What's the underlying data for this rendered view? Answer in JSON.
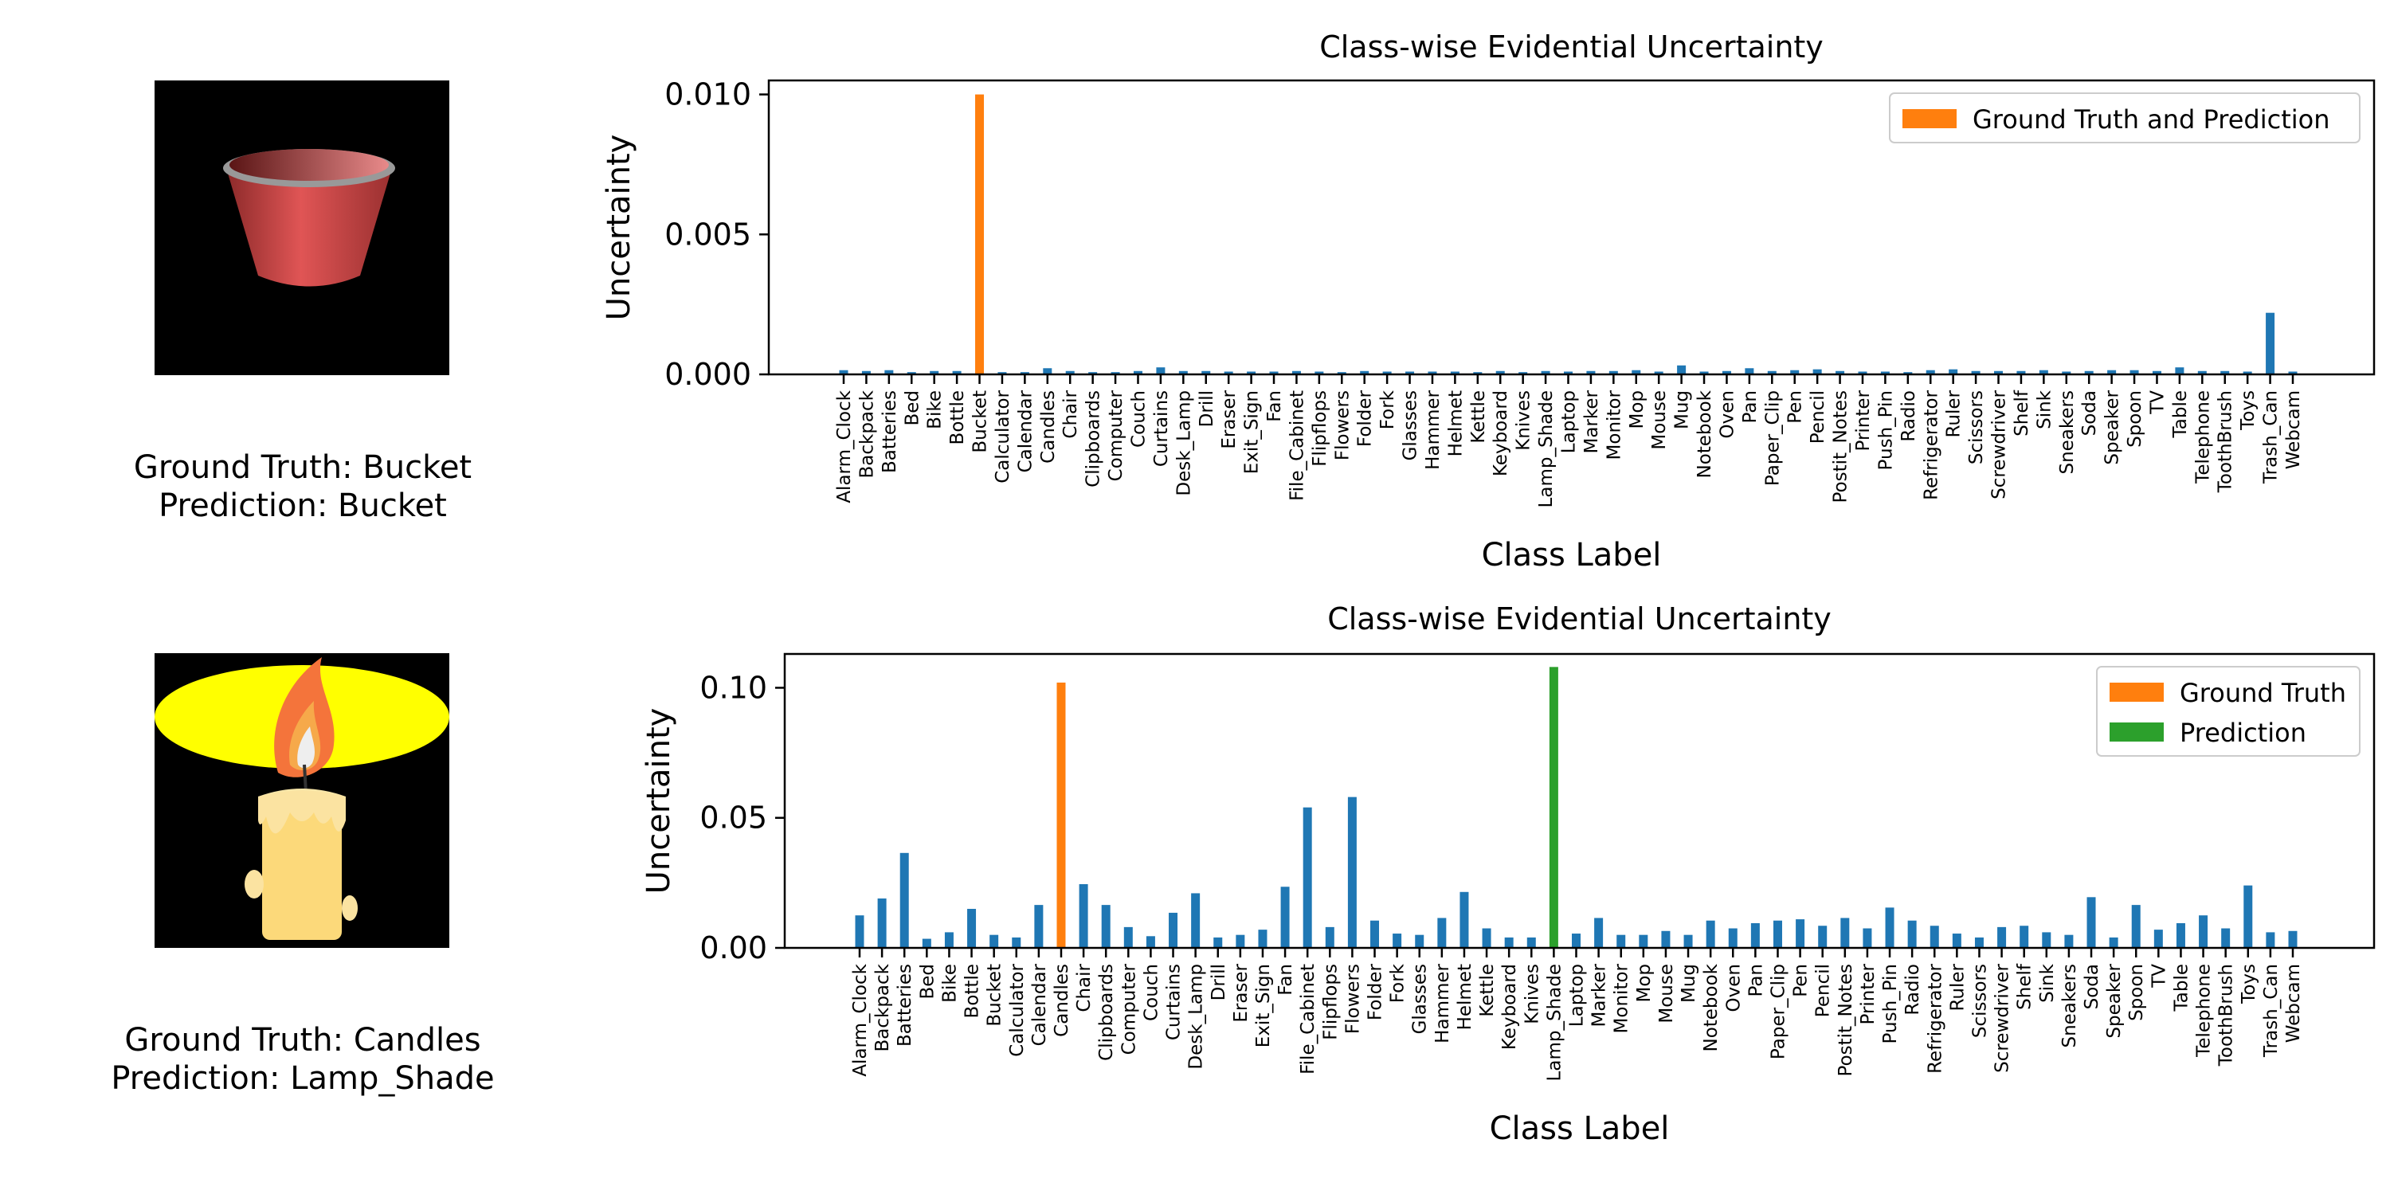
{
  "panels": [
    {
      "caption_gt": "Ground Truth: Bucket",
      "caption_pred": "Prediction: Bucket",
      "image": "bucket"
    },
    {
      "caption_gt": "Ground Truth: Candles",
      "caption_pred": "Prediction: Lamp_Shade",
      "image": "candle"
    }
  ],
  "colors": {
    "default": "#1f77b4",
    "ground_truth": "#ff7f0e",
    "prediction": "#2ca02c"
  },
  "chart_data": [
    {
      "type": "bar",
      "title": "Class-wise Evidential Uncertainty",
      "xlabel": "Class Label",
      "ylabel": "Uncertainty",
      "ylim": [
        0,
        0.0105
      ],
      "yticks": [
        "0.000",
        "0.005",
        "0.010"
      ],
      "ytick_values": [
        0,
        0.005,
        0.01
      ],
      "legend": [
        {
          "name": "Ground Truth and Prediction",
          "color": "#ff7f0e"
        }
      ],
      "legend_position": "top-right",
      "categories": [
        "Alarm_Clock",
        "Backpack",
        "Batteries",
        "Bed",
        "Bike",
        "Bottle",
        "Bucket",
        "Calculator",
        "Calendar",
        "Candles",
        "Chair",
        "Clipboards",
        "Computer",
        "Couch",
        "Curtains",
        "Desk_Lamp",
        "Drill",
        "Eraser",
        "Exit_Sign",
        "Fan",
        "File_Cabinet",
        "Flipflops",
        "Flowers",
        "Folder",
        "Fork",
        "Glasses",
        "Hammer",
        "Helmet",
        "Kettle",
        "Keyboard",
        "Knives",
        "Lamp_Shade",
        "Laptop",
        "Marker",
        "Monitor",
        "Mop",
        "Mouse",
        "Mug",
        "Notebook",
        "Oven",
        "Pan",
        "Paper_Clip",
        "Pen",
        "Pencil",
        "Postit_Notes",
        "Printer",
        "Push_Pin",
        "Radio",
        "Refrigerator",
        "Ruler",
        "Scissors",
        "Screwdriver",
        "Shelf",
        "Sink",
        "Sneakers",
        "Soda",
        "Speaker",
        "Spoon",
        "TV",
        "Table",
        "Telephone",
        "ToothBrush",
        "Toys",
        "Trash_Can",
        "Webcam"
      ],
      "values": [
        0.00015,
        0.00012,
        0.00015,
        8e-05,
        0.00012,
        0.00012,
        0.01,
        8e-05,
        8e-05,
        0.00022,
        0.00012,
        8e-05,
        8e-05,
        0.00012,
        0.00025,
        0.00012,
        0.00012,
        0.0001,
        0.0001,
        0.0001,
        0.00012,
        0.0001,
        8e-05,
        0.00012,
        0.0001,
        0.0001,
        0.0001,
        0.0001,
        8e-05,
        0.00012,
        8e-05,
        0.00012,
        0.0001,
        0.00012,
        0.00012,
        0.00015,
        0.0001,
        0.00032,
        0.0001,
        0.00012,
        0.00022,
        0.00012,
        0.00015,
        0.00018,
        0.00012,
        0.0001,
        0.0001,
        8e-05,
        0.00015,
        0.00018,
        0.00012,
        0.00012,
        0.00012,
        0.00015,
        0.0001,
        0.00012,
        0.00015,
        0.00015,
        0.00012,
        0.00025,
        0.00012,
        0.00012,
        0.0001,
        0.0022,
        0.0001
      ],
      "highlights": [
        {
          "index": 6,
          "role": "ground_truth"
        }
      ]
    },
    {
      "type": "bar",
      "title": "Class-wise Evidential Uncertainty",
      "xlabel": "Class Label",
      "ylabel": "Uncertainty",
      "ylim": [
        0,
        0.113
      ],
      "yticks": [
        "0.00",
        "0.05",
        "0.10"
      ],
      "ytick_values": [
        0,
        0.05,
        0.1
      ],
      "legend": [
        {
          "name": "Ground Truth",
          "color": "#ff7f0e"
        },
        {
          "name": "Prediction",
          "color": "#2ca02c"
        }
      ],
      "legend_position": "top-right",
      "categories": [
        "Alarm_Clock",
        "Backpack",
        "Batteries",
        "Bed",
        "Bike",
        "Bottle",
        "Bucket",
        "Calculator",
        "Calendar",
        "Candles",
        "Chair",
        "Clipboards",
        "Computer",
        "Couch",
        "Curtains",
        "Desk_Lamp",
        "Drill",
        "Eraser",
        "Exit_Sign",
        "Fan",
        "File_Cabinet",
        "Flipflops",
        "Flowers",
        "Folder",
        "Fork",
        "Glasses",
        "Hammer",
        "Helmet",
        "Kettle",
        "Keyboard",
        "Knives",
        "Lamp_Shade",
        "Laptop",
        "Marker",
        "Monitor",
        "Mop",
        "Mouse",
        "Mug",
        "Notebook",
        "Oven",
        "Pan",
        "Paper_Clip",
        "Pen",
        "Pencil",
        "Postit_Notes",
        "Printer",
        "Push_Pin",
        "Radio",
        "Refrigerator",
        "Ruler",
        "Scissors",
        "Screwdriver",
        "Shelf",
        "Sink",
        "Sneakers",
        "Soda",
        "Speaker",
        "Spoon",
        "TV",
        "Table",
        "Telephone",
        "ToothBrush",
        "Toys",
        "Trash_Can",
        "Webcam"
      ],
      "values": [
        0.0125,
        0.019,
        0.0365,
        0.0035,
        0.006,
        0.015,
        0.005,
        0.004,
        0.0165,
        0.102,
        0.0245,
        0.0165,
        0.008,
        0.0045,
        0.0135,
        0.021,
        0.004,
        0.005,
        0.007,
        0.0235,
        0.054,
        0.008,
        0.058,
        0.0105,
        0.0055,
        0.005,
        0.0115,
        0.0215,
        0.0075,
        0.004,
        0.004,
        0.108,
        0.0055,
        0.0115,
        0.005,
        0.005,
        0.0065,
        0.005,
        0.0105,
        0.0075,
        0.0095,
        0.0105,
        0.011,
        0.0085,
        0.0115,
        0.0075,
        0.0155,
        0.0105,
        0.0085,
        0.0055,
        0.004,
        0.008,
        0.0085,
        0.006,
        0.005,
        0.0195,
        0.004,
        0.0165,
        0.007,
        0.0095,
        0.0125,
        0.0075,
        0.024,
        0.006,
        0.0065
      ],
      "highlights": [
        {
          "index": 9,
          "role": "ground_truth"
        },
        {
          "index": 31,
          "role": "prediction"
        }
      ]
    }
  ]
}
